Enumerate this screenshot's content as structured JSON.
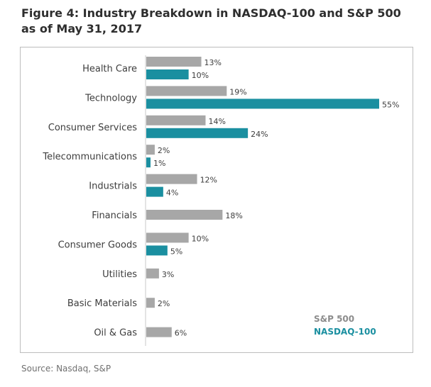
{
  "title": "Figure 4: Industry Breakdown in NASDAQ-100 and S&P 500 as of May 31, 2017",
  "source": "Source: Nasdaq, S&P",
  "colors": {
    "sp500": "#a7a7a7",
    "nasdaq": "#1a8fa0",
    "axis": "#c8c8c8"
  },
  "chart_data": {
    "type": "bar",
    "orientation": "horizontal",
    "title": "Figure 4: Industry Breakdown in NASDAQ-100 and S&P 500 as of May 31, 2017",
    "categories": [
      "Health Care",
      "Technology",
      "Consumer Services",
      "Telecommunications",
      "Industrials",
      "Financials",
      "Consumer Goods",
      "Utilities",
      "Basic Materials",
      "Oil & Gas"
    ],
    "series": [
      {
        "name": "S&P 500",
        "values": [
          13,
          19,
          14,
          2,
          12,
          18,
          10,
          3,
          2,
          6
        ],
        "color": "#a7a7a7"
      },
      {
        "name": "NASDAQ-100",
        "values": [
          10,
          55,
          24,
          1,
          4,
          null,
          5,
          null,
          null,
          null
        ],
        "color": "#1a8fa0"
      }
    ],
    "value_suffix": "%",
    "xlim": [
      0,
      55
    ],
    "grid": false,
    "legend_position": "bottom-right",
    "xlabel": "",
    "ylabel": ""
  }
}
